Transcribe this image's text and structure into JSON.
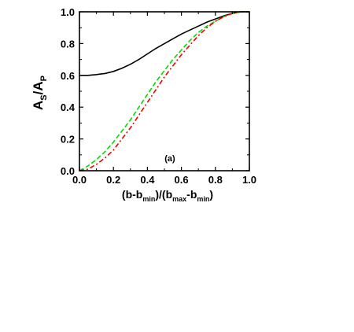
{
  "chart_data": {
    "type": "line",
    "panel_label": "(a)",
    "ylabel": {
      "main": "A",
      "sub": "S",
      "sep": "/A",
      "sub2": "P"
    },
    "xlabel": {
      "p1": "(b-b",
      "s1": "min",
      "p2": ")/(b",
      "s2": "max",
      "p3": "-b",
      "s3": "min",
      "p4": ")"
    },
    "xlim": [
      0.0,
      1.0
    ],
    "ylim": [
      0.0,
      1.0
    ],
    "xticks": [
      "0.0",
      "0.2",
      "0.4",
      "0.6",
      "0.8",
      "1.0"
    ],
    "yticks": [
      "0.0",
      "0.2",
      "0.4",
      "0.6",
      "0.8",
      "1.0"
    ],
    "series": [
      {
        "style": "solid",
        "color": "#000000",
        "x": [
          0.0,
          0.05,
          0.1,
          0.15,
          0.2,
          0.25,
          0.3,
          0.35,
          0.4,
          0.45,
          0.5,
          0.55,
          0.6,
          0.65,
          0.7,
          0.75,
          0.8,
          0.85,
          0.9,
          0.95,
          1.0
        ],
        "y": [
          0.6,
          0.6,
          0.605,
          0.612,
          0.625,
          0.645,
          0.67,
          0.7,
          0.735,
          0.77,
          0.8,
          0.83,
          0.86,
          0.885,
          0.91,
          0.935,
          0.955,
          0.975,
          0.99,
          1.0,
          1.0
        ]
      },
      {
        "style": "dashed",
        "color": "#00dd00",
        "x": [
          0.0,
          0.05,
          0.1,
          0.15,
          0.2,
          0.25,
          0.3,
          0.35,
          0.4,
          0.45,
          0.5,
          0.55,
          0.6,
          0.65,
          0.7,
          0.75,
          0.8,
          0.85,
          0.9,
          0.95,
          1.0
        ],
        "y": [
          0.0,
          0.03,
          0.07,
          0.12,
          0.18,
          0.25,
          0.32,
          0.4,
          0.48,
          0.56,
          0.63,
          0.7,
          0.76,
          0.82,
          0.87,
          0.91,
          0.94,
          0.97,
          0.99,
          1.0,
          1.0
        ]
      },
      {
        "style": "dashdot",
        "color": "#ee0000",
        "x": [
          0.0,
          0.05,
          0.1,
          0.15,
          0.2,
          0.25,
          0.3,
          0.35,
          0.4,
          0.45,
          0.5,
          0.55,
          0.6,
          0.65,
          0.7,
          0.75,
          0.8,
          0.85,
          0.9,
          0.95,
          1.0
        ],
        "y": [
          0.0,
          0.01,
          0.04,
          0.08,
          0.13,
          0.2,
          0.27,
          0.35,
          0.43,
          0.51,
          0.59,
          0.66,
          0.73,
          0.79,
          0.85,
          0.9,
          0.94,
          0.97,
          0.99,
          1.0,
          1.0
        ]
      }
    ]
  }
}
